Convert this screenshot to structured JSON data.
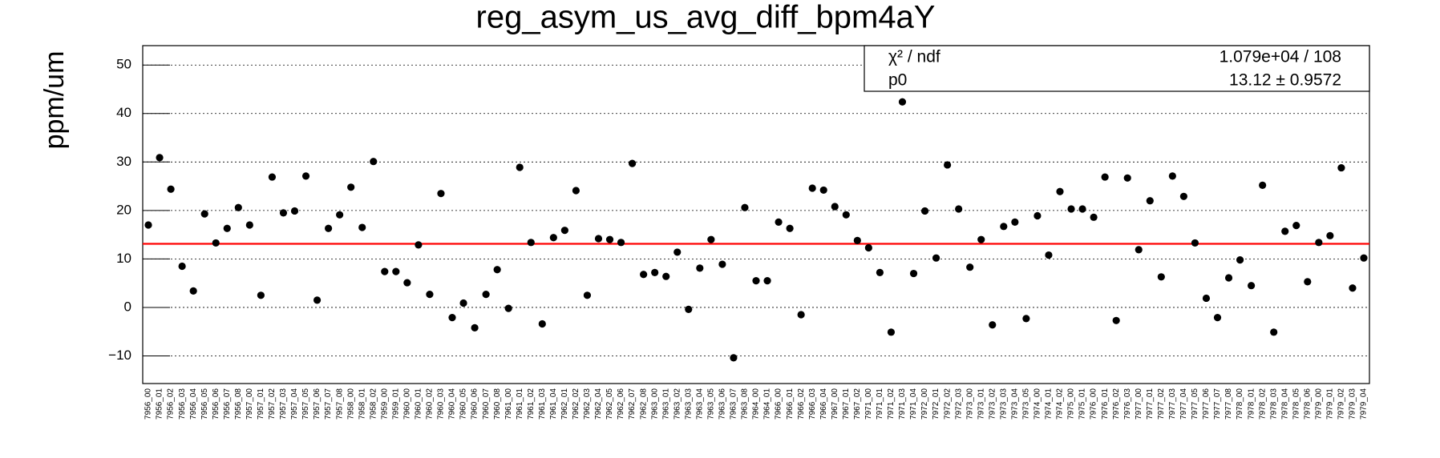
{
  "chart_data": {
    "type": "scatter",
    "title": "reg_asym_us_avg_diff_bpm4aY",
    "y_label": "ppm/um",
    "categories": [
      "7956_00",
      "7956_01",
      "7956_02",
      "7956_03",
      "7956_04",
      "7956_05",
      "7956_06",
      "7956_07",
      "7956_08",
      "7957_00",
      "7957_01",
      "7957_02",
      "7957_03",
      "7957_04",
      "7957_05",
      "7957_06",
      "7957_07",
      "7957_08",
      "7958_00",
      "7958_01",
      "7958_02",
      "7959_00",
      "7959_01",
      "7960_00",
      "7960_01",
      "7960_02",
      "7960_03",
      "7960_04",
      "7960_05",
      "7960_06",
      "7960_07",
      "7960_08",
      "7961_00",
      "7961_01",
      "7961_02",
      "7961_03",
      "7961_04",
      "7962_01",
      "7962_02",
      "7962_03",
      "7962_04",
      "7962_05",
      "7962_06",
      "7962_07",
      "7962_08",
      "7963_00",
      "7963_01",
      "7963_02",
      "7963_03",
      "7963_04",
      "7963_05",
      "7963_06",
      "7963_07",
      "7963_08",
      "7964_00",
      "7964_01",
      "7966_00",
      "7966_01",
      "7966_02",
      "7966_03",
      "7966_04",
      "7967_00",
      "7967_01",
      "7967_02",
      "7971_00",
      "7971_01",
      "7971_02",
      "7971_03",
      "7971_04",
      "7972_00",
      "7972_01",
      "7972_02",
      "7972_03",
      "7973_00",
      "7973_01",
      "7973_02",
      "7973_03",
      "7973_04",
      "7973_05",
      "7974_00",
      "7974_01",
      "7974_02",
      "7975_00",
      "7975_01",
      "7976_00",
      "7976_01",
      "7976_02",
      "7976_03",
      "7977_00",
      "7977_01",
      "7977_02",
      "7977_03",
      "7977_04",
      "7977_05",
      "7977_06",
      "7977_07",
      "7977_08",
      "7978_00",
      "7978_01",
      "7978_02",
      "7978_03",
      "7978_04",
      "7978_05",
      "7978_06",
      "7979_00",
      "7979_01",
      "7979_02",
      "7979_03",
      "7979_04"
    ],
    "values": [
      17.0,
      30.9,
      24.4,
      8.5,
      3.4,
      19.3,
      13.3,
      16.3,
      20.6,
      17.0,
      2.5,
      26.9,
      19.5,
      19.9,
      27.1,
      1.5,
      16.3,
      19.1,
      24.8,
      16.5,
      30.1,
      7.4,
      7.4,
      5.1,
      12.9,
      2.7,
      23.5,
      -2.1,
      0.9,
      -4.2,
      2.7,
      7.8,
      -0.2,
      28.9,
      13.4,
      -3.4,
      14.4,
      15.9,
      24.1,
      2.5,
      14.2,
      14.0,
      13.4,
      29.7,
      6.8,
      7.2,
      6.4,
      11.4,
      -0.4,
      8.1,
      14.0,
      8.9,
      -10.4,
      20.6,
      5.5,
      5.5,
      17.6,
      16.3,
      -1.5,
      24.6,
      24.2,
      20.8,
      19.1,
      13.8,
      12.3,
      7.2,
      -5.1,
      42.4,
      7.0,
      19.9,
      10.2,
      29.4,
      20.3,
      8.3,
      14.0,
      -3.6,
      16.7,
      17.6,
      -2.3,
      18.9,
      10.8,
      23.9,
      20.3,
      20.3,
      18.6,
      26.9,
      -2.7,
      26.7,
      11.9,
      22.0,
      6.3,
      27.1,
      22.9,
      13.3,
      1.9,
      -2.1,
      6.1,
      9.8,
      4.5,
      25.2,
      -5.1,
      15.7,
      16.9,
      5.3,
      13.4,
      14.8,
      28.8,
      4.0,
      10.2
    ],
    "color": "#000000",
    "fit": {
      "value": 13.12,
      "color": "#ff0000"
    },
    "stats": [
      {
        "name": "χ² / ndf",
        "text": "1.079e+04 / 108"
      },
      {
        "name": "p0",
        "text": "13.12 ± 0.9572"
      }
    ],
    "ylim": [
      -15.7,
      54
    ],
    "yticks": [
      {
        "value": -10,
        "label": "−10"
      },
      0,
      10,
      20,
      30,
      40,
      50
    ],
    "grid": true
  }
}
